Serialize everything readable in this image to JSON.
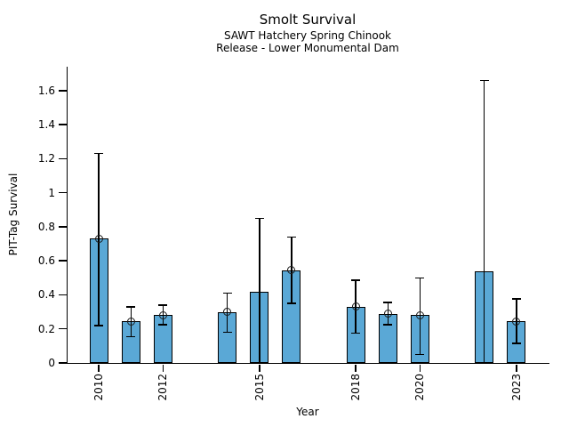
{
  "chart_data": {
    "type": "bar",
    "title": "Smolt Survival",
    "subtitle_line1": "SAWT Hatchery Spring Chinook",
    "subtitle_line2": "Release - Lower Monumental Dam",
    "xlabel": "Year",
    "ylabel": "PIT-Tag Survival",
    "xlim": [
      2009,
      2024
    ],
    "ylim": [
      0,
      1.74
    ],
    "ytick_values": [
      0,
      0.2,
      0.4,
      0.6,
      0.8,
      1,
      1.2,
      1.4,
      1.6
    ],
    "ytick_labels": [
      "0",
      "0.2",
      "0.4",
      "0.6",
      "0.8",
      "1",
      "1.2",
      "1.4",
      "1.6"
    ],
    "xtick_years": [
      2010,
      2012,
      2015,
      2018,
      2020,
      2023
    ],
    "grid": false,
    "legend": null,
    "bar_width_years": 0.58,
    "bar_color": "#5AA8D6",
    "bar_edge_color": "#000000",
    "error_bar_color": "#000000",
    "marker_style": "open-circle",
    "points": [
      {
        "year": 2010,
        "value": 0.73,
        "ci_low": 0.22,
        "ci_high": 1.23,
        "marker": true
      },
      {
        "year": 2011,
        "value": 0.245,
        "ci_low": 0.155,
        "ci_high": 0.33,
        "marker": true
      },
      {
        "year": 2012,
        "value": 0.28,
        "ci_low": 0.225,
        "ci_high": 0.34,
        "marker": true
      },
      {
        "year": 2014,
        "value": 0.3,
        "ci_low": 0.18,
        "ci_high": 0.41,
        "marker": true
      },
      {
        "year": 2015,
        "value": 0.42,
        "ci_low": 0.0,
        "ci_high": 0.85,
        "marker": false
      },
      {
        "year": 2016,
        "value": 0.545,
        "ci_low": 0.35,
        "ci_high": 0.74,
        "marker": true
      },
      {
        "year": 2018,
        "value": 0.33,
        "ci_low": 0.175,
        "ci_high": 0.485,
        "marker": true
      },
      {
        "year": 2019,
        "value": 0.29,
        "ci_low": 0.225,
        "ci_high": 0.355,
        "marker": true
      },
      {
        "year": 2020,
        "value": 0.28,
        "ci_low": 0.05,
        "ci_high": 0.5,
        "marker": true
      },
      {
        "year": 2022,
        "value": 0.54,
        "ci_low": 0.0,
        "ci_high": 1.66,
        "marker": false
      },
      {
        "year": 2023,
        "value": 0.245,
        "ci_low": 0.115,
        "ci_high": 0.375,
        "marker": true
      }
    ]
  }
}
